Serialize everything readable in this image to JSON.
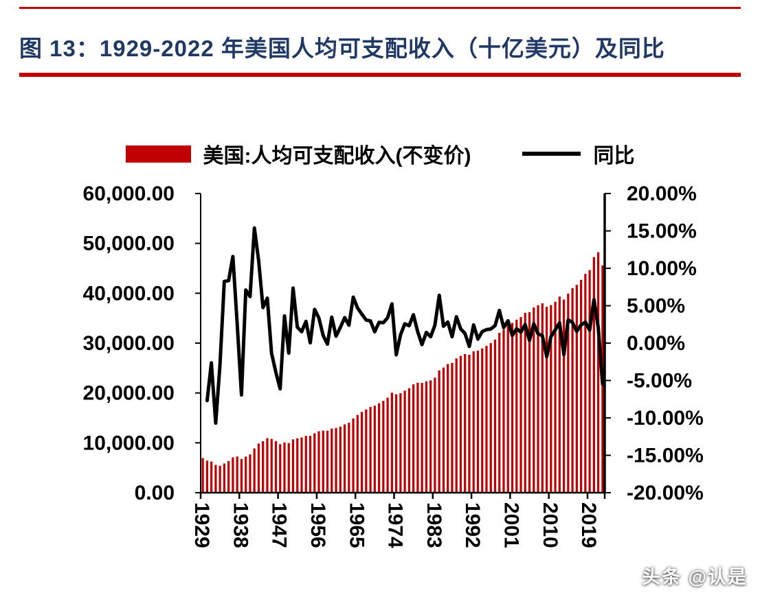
{
  "page": {
    "title": "图 13：1929-2022 年美国人均可支配收入（十亿美元）及同比",
    "watermark": "头条 @认是",
    "accent_color": "#c00000",
    "title_color": "#1f3864"
  },
  "legend": [
    {
      "label": "美国:人均可支配收入(不变价)",
      "type": "bar",
      "color": "#c00000"
    },
    {
      "label": "同比",
      "type": "line",
      "color": "#000000"
    }
  ],
  "chart_data": {
    "type": "combo",
    "title": "图 13：1929-2022 年美国人均可支配收入（十亿美元）及同比",
    "x": [
      1929,
      1930,
      1931,
      1932,
      1933,
      1934,
      1935,
      1936,
      1937,
      1938,
      1939,
      1940,
      1941,
      1942,
      1943,
      1944,
      1945,
      1946,
      1947,
      1948,
      1949,
      1950,
      1951,
      1952,
      1953,
      1954,
      1955,
      1956,
      1957,
      1958,
      1959,
      1960,
      1961,
      1962,
      1963,
      1964,
      1965,
      1966,
      1967,
      1968,
      1969,
      1970,
      1971,
      1972,
      1973,
      1974,
      1975,
      1976,
      1977,
      1978,
      1979,
      1980,
      1981,
      1982,
      1983,
      1984,
      1985,
      1986,
      1987,
      1988,
      1989,
      1990,
      1991,
      1992,
      1993,
      1994,
      1995,
      1996,
      1997,
      1998,
      1999,
      2000,
      2001,
      2002,
      2003,
      2004,
      2005,
      2006,
      2007,
      2008,
      2009,
      2010,
      2011,
      2012,
      2013,
      2014,
      2015,
      2016,
      2017,
      2018,
      2019,
      2020,
      2021,
      2022
    ],
    "x_tick_labels": [
      "1929",
      "1938",
      "1947",
      "1956",
      "1965",
      "1974",
      "1983",
      "1992",
      "2001",
      "2010",
      "2019"
    ],
    "left_axis": {
      "min": 0,
      "max": 60000,
      "tick_labels": [
        "0.00",
        "10,000.00",
        "20,000.00",
        "30,000.00",
        "40,000.00",
        "50,000.00",
        "60,000.00"
      ]
    },
    "right_axis": {
      "min": -20,
      "max": 20,
      "tick_labels": [
        "-20.00%",
        "-15.00%",
        "-10.00%",
        "-5.00%",
        "0.00%",
        "5.00%",
        "10.00%",
        "15.00%",
        "20.00%"
      ]
    },
    "grid": false,
    "legend_position": "top",
    "series": [
      {
        "name": "美国:人均可支配收入(不变价)",
        "type": "bar",
        "axis": "left",
        "color": "#c00000",
        "values": [
          6947,
          6413,
          6244,
          5576,
          5412,
          5858,
          6348,
          7083,
          7262,
          6759,
          7239,
          7689,
          8872,
          9851,
          10319,
          10939,
          10789,
          10366,
          9733,
          10086,
          9951,
          10684,
          10911,
          11077,
          11399,
          11404,
          11917,
          12320,
          12445,
          12428,
          12859,
          12978,
          13251,
          13702,
          14030,
          14893,
          15593,
          16196,
          16697,
          17191,
          17453,
          17937,
          18427,
          19052,
          20050,
          19735,
          19955,
          20469,
          20943,
          21738,
          22063,
          22019,
          22333,
          22523,
          23062,
          24536,
          25090,
          25801,
          26021,
          26938,
          27449,
          27800,
          27674,
          28346,
          28495,
          28934,
          29455,
          30010,
          30713,
          32055,
          32717,
          33696,
          34037,
          34698,
          35208,
          36083,
          36213,
          37147,
          37606,
          37979,
          37289,
          37614,
          38284,
          39324,
          38727,
          39932,
          41034,
          41677,
          42691,
          43886,
          44644,
          47241,
          48225,
          45577
        ]
      },
      {
        "name": "同比",
        "type": "line",
        "axis": "right",
        "color": "#000000",
        "values": [
          null,
          -7.69,
          -2.64,
          -10.7,
          -2.94,
          8.24,
          8.36,
          11.58,
          2.53,
          -6.93,
          7.1,
          6.22,
          15.39,
          11.03,
          4.75,
          6.01,
          -1.37,
          -3.92,
          -6.11,
          3.63,
          -1.34,
          7.37,
          2.12,
          1.52,
          2.91,
          0.04,
          4.5,
          3.38,
          1.01,
          -0.14,
          3.47,
          0.93,
          2.1,
          3.4,
          2.39,
          6.15,
          4.7,
          3.87,
          3.09,
          2.96,
          1.52,
          2.77,
          2.73,
          3.39,
          5.24,
          -1.57,
          1.11,
          2.58,
          2.32,
          3.8,
          1.5,
          -0.2,
          1.43,
          0.85,
          2.39,
          6.39,
          2.26,
          2.83,
          0.85,
          3.52,
          1.9,
          1.28,
          -0.45,
          2.43,
          0.53,
          1.54,
          1.8,
          1.88,
          2.34,
          4.37,
          2.07,
          2.99,
          1.01,
          1.94,
          1.47,
          2.49,
          0.36,
          2.58,
          1.24,
          0.99,
          -1.82,
          0.87,
          1.78,
          2.72,
          -1.52,
          3.11,
          2.76,
          1.57,
          2.43,
          2.8,
          1.73,
          5.82,
          2.08,
          -5.49
        ]
      }
    ]
  }
}
